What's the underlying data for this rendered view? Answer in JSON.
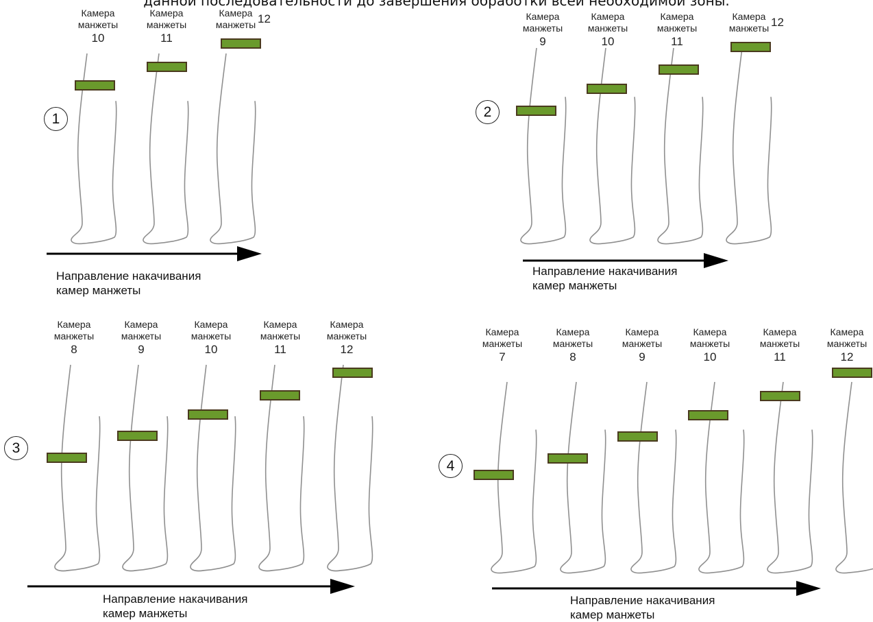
{
  "top_text": "данной последовательности до завершения обработки всей необходимой зоны.",
  "chamber_label": "Камера\nманжеты",
  "direction_line1": "Направление накачивания",
  "direction_line2": "камер манжеты",
  "colors": {
    "cuff_fill": "#6a9a2c",
    "cuff_border": "#4a3a1e",
    "leg_line": "#8f8f8f",
    "arrow": "#000000"
  },
  "panels": [
    {
      "number": "1",
      "chambers": [
        "10",
        "11",
        "12"
      ]
    },
    {
      "number": "2",
      "chambers": [
        "9",
        "10",
        "11",
        "12"
      ]
    },
    {
      "number": "3",
      "chambers": [
        "8",
        "9",
        "10",
        "11",
        "12"
      ]
    },
    {
      "number": "4",
      "chambers": [
        "7",
        "8",
        "9",
        "10",
        "11",
        "12"
      ]
    }
  ]
}
